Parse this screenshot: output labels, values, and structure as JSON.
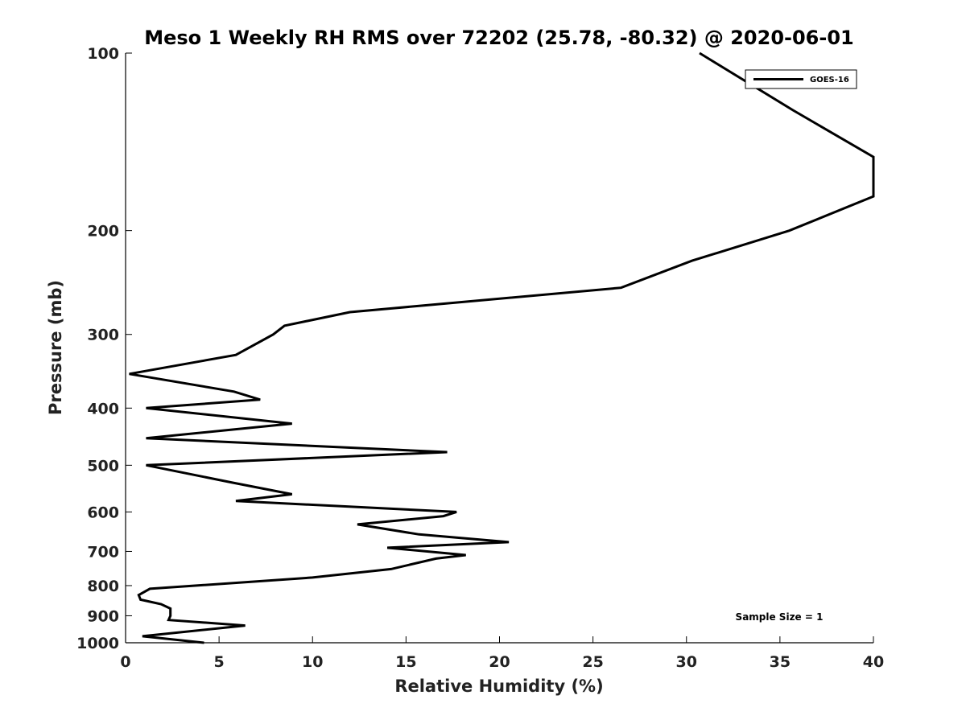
{
  "chart_data": {
    "type": "line",
    "title": "Meso 1 Weekly RH RMS over 72202 (25.78, -80.32) @ 2020-06-01",
    "xlabel": "Relative Humidity (%)",
    "ylabel": "Pressure (mb)",
    "xlim": [
      0,
      40
    ],
    "ylim": [
      1000,
      100
    ],
    "yscale": "log",
    "y_reversed": true,
    "x_ticks": [
      0,
      5,
      10,
      15,
      20,
      25,
      30,
      35,
      40
    ],
    "y_ticks": [
      100,
      200,
      300,
      400,
      500,
      600,
      700,
      800,
      900,
      1000
    ],
    "grid": false,
    "legend_position": "top-right",
    "annotation": "Sample Size = 1",
    "series": [
      {
        "name": "GOES-16",
        "color": "#000000",
        "points": [
          [
            30.7,
            100
          ],
          [
            35.7,
            125
          ],
          [
            40.0,
            150
          ],
          [
            40.0,
            175
          ],
          [
            35.5,
            200
          ],
          [
            30.3,
            225
          ],
          [
            26.5,
            250
          ],
          [
            12.0,
            275
          ],
          [
            8.5,
            290
          ],
          [
            7.9,
            300
          ],
          [
            5.9,
            325
          ],
          [
            0.2,
            350
          ],
          [
            5.8,
            375
          ],
          [
            7.2,
            387
          ],
          [
            1.1,
            400
          ],
          [
            8.9,
            425
          ],
          [
            1.1,
            450
          ],
          [
            17.2,
            475
          ],
          [
            1.1,
            500
          ],
          [
            5.7,
            535
          ],
          [
            8.9,
            560
          ],
          [
            5.9,
            575
          ],
          [
            17.7,
            600
          ],
          [
            17.0,
            610
          ],
          [
            12.4,
            630
          ],
          [
            15.7,
            655
          ],
          [
            20.5,
            675
          ],
          [
            14.0,
            690
          ],
          [
            18.2,
            710
          ],
          [
            16.6,
            720
          ],
          [
            14.2,
            750
          ],
          [
            10.0,
            775
          ],
          [
            1.3,
            810
          ],
          [
            0.7,
            830
          ],
          [
            0.8,
            845
          ],
          [
            1.9,
            860
          ],
          [
            2.4,
            875
          ],
          [
            2.4,
            900
          ],
          [
            2.3,
            915
          ],
          [
            6.4,
            935
          ],
          [
            0.9,
            975
          ],
          [
            4.2,
            1000
          ]
        ]
      }
    ]
  }
}
